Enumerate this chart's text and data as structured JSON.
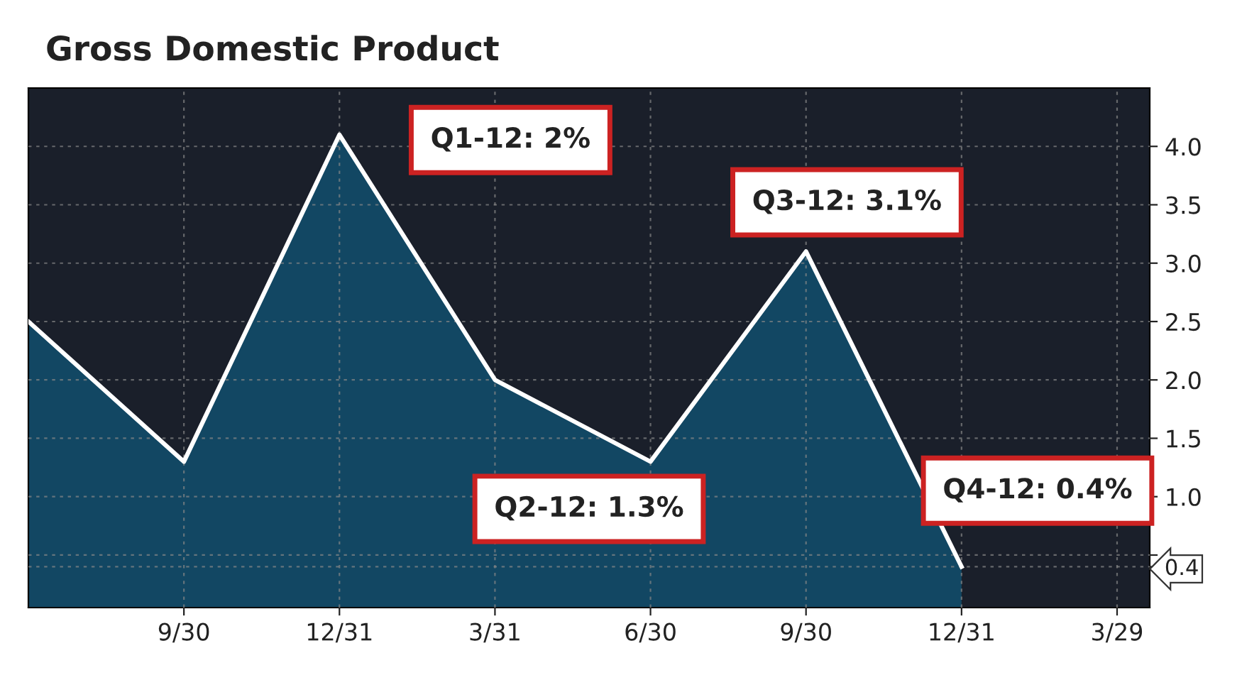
{
  "chart_data": {
    "type": "area",
    "title": "Gross Domestic Product",
    "categories": [
      null,
      "9/30",
      "12/31",
      "3/31",
      "6/30",
      "9/30",
      "12/31",
      "3/29"
    ],
    "series": [
      {
        "color": "#ffffff",
        "values": [
          2.5,
          1.3,
          4.1,
          2.0,
          1.3,
          3.1,
          0.4,
          null
        ]
      }
    ],
    "ylim": [
      0.05,
      4.5
    ],
    "yticks": [
      {
        "value": 0.4,
        "label": "0.4"
      },
      {
        "value": 0.5,
        "label": null
      },
      {
        "value": 1.0,
        "label": "1.0"
      },
      {
        "value": 1.5,
        "label": "1.5"
      },
      {
        "value": 2.0,
        "label": "2.0"
      },
      {
        "value": 2.5,
        "label": "2.5"
      },
      {
        "value": 3.0,
        "label": "3.0"
      },
      {
        "value": 3.5,
        "label": "3.5"
      },
      {
        "value": 4.0,
        "label": "4.0"
      }
    ],
    "grid": true,
    "annotations": [
      "Q1-12: 2%",
      "Q2-12: 1.3%",
      "Q3-12: 3.1%",
      "Q4-12: 0.4%"
    ]
  }
}
